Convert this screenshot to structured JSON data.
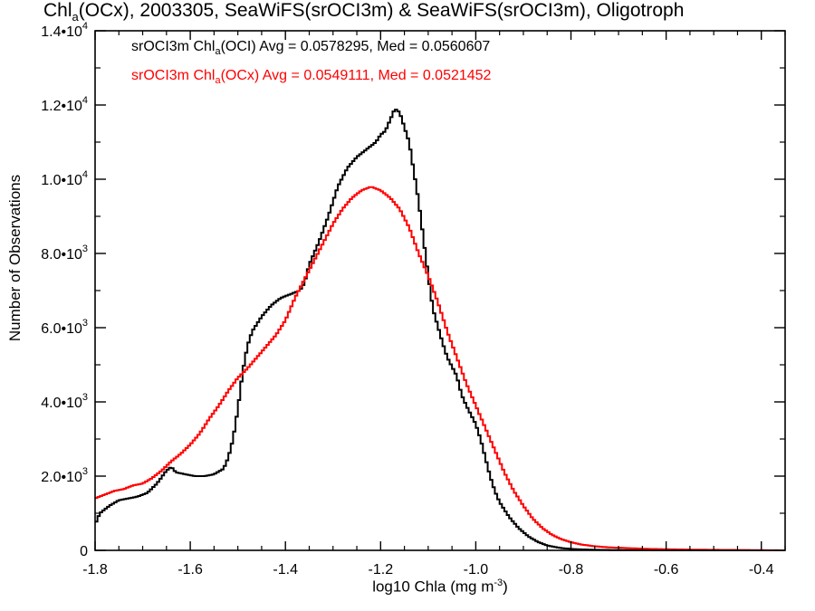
{
  "title": {
    "prefix": "Chl",
    "subscript": "a",
    "suffix": "(OCx), 2003305, SeaWiFS(srOCI3m) & SeaWiFS(srOCI3m), Oligotroph"
  },
  "legend": [
    {
      "prefix": "srOCI3m Chl",
      "subscript": "a",
      "suffix": "(OCI) Avg = 0.0578295, Med = 0.0560607",
      "color": "#000000"
    },
    {
      "prefix": "srOCI3m Chl",
      "subscript": "a",
      "suffix": "(OCx) Avg = 0.0549111, Med = 0.0521452",
      "color": "#ff0000"
    }
  ],
  "axes": {
    "xlabel_prefix": "log10 Chla (mg m",
    "xlabel_sup": "-3",
    "xlabel_suffix": ")",
    "ylabel": "Number of Observations",
    "xticks": [
      {
        "value": -1.8,
        "label": "-1.8"
      },
      {
        "value": -1.6,
        "label": "-1.6"
      },
      {
        "value": -1.4,
        "label": "-1.4"
      },
      {
        "value": -1.2,
        "label": "-1.2"
      },
      {
        "value": -1.0,
        "label": "-1.0"
      },
      {
        "value": -0.8,
        "label": "-0.8"
      },
      {
        "value": -0.6,
        "label": "-0.6"
      },
      {
        "value": -0.4,
        "label": "-0.4"
      }
    ],
    "yticks": [
      {
        "value": 0,
        "mantissa": "0",
        "exp": ""
      },
      {
        "value": 2000,
        "mantissa": "2.0•10",
        "exp": "3"
      },
      {
        "value": 4000,
        "mantissa": "4.0•10",
        "exp": "3"
      },
      {
        "value": 6000,
        "mantissa": "6.0•10",
        "exp": "3"
      },
      {
        "value": 8000,
        "mantissa": "8.0•10",
        "exp": "3"
      },
      {
        "value": 10000,
        "mantissa": "1.0•10",
        "exp": "4"
      },
      {
        "value": 12000,
        "mantissa": "1.2•10",
        "exp": "4"
      },
      {
        "value": 14000,
        "mantissa": "1.4•10",
        "exp": "4"
      }
    ]
  },
  "chart_data": {
    "type": "line",
    "step": true,
    "xlim": [
      -1.8,
      -0.35
    ],
    "ylim": [
      0,
      14000
    ],
    "grid": false,
    "legend_position": "top-left",
    "series": [
      {
        "name": "srOCI3m Chla(OCI) Avg = 0.0578295, Med = 0.0560607",
        "color": "#000000",
        "points": [
          [
            -1.8,
            700
          ],
          [
            -1.79,
            1000
          ],
          [
            -1.77,
            1200
          ],
          [
            -1.75,
            1350
          ],
          [
            -1.73,
            1400
          ],
          [
            -1.71,
            1450
          ],
          [
            -1.69,
            1550
          ],
          [
            -1.67,
            1800
          ],
          [
            -1.65,
            2150
          ],
          [
            -1.64,
            2250
          ],
          [
            -1.63,
            2100
          ],
          [
            -1.61,
            2050
          ],
          [
            -1.59,
            2000
          ],
          [
            -1.57,
            2000
          ],
          [
            -1.55,
            2050
          ],
          [
            -1.53,
            2200
          ],
          [
            -1.52,
            2500
          ],
          [
            -1.51,
            3000
          ],
          [
            -1.5,
            3800
          ],
          [
            -1.49,
            4800
          ],
          [
            -1.48,
            5500
          ],
          [
            -1.47,
            5900
          ],
          [
            -1.45,
            6300
          ],
          [
            -1.43,
            6600
          ],
          [
            -1.41,
            6800
          ],
          [
            -1.39,
            6900
          ],
          [
            -1.37,
            7000
          ],
          [
            -1.36,
            7200
          ],
          [
            -1.35,
            7700
          ],
          [
            -1.33,
            8300
          ],
          [
            -1.31,
            9000
          ],
          [
            -1.29,
            9800
          ],
          [
            -1.27,
            10300
          ],
          [
            -1.25,
            10600
          ],
          [
            -1.23,
            10800
          ],
          [
            -1.21,
            11000
          ],
          [
            -1.2,
            11200
          ],
          [
            -1.19,
            11300
          ],
          [
            -1.18,
            11600
          ],
          [
            -1.17,
            11900
          ],
          [
            -1.16,
            11800
          ],
          [
            -1.15,
            11400
          ],
          [
            -1.14,
            11000
          ],
          [
            -1.13,
            10200
          ],
          [
            -1.12,
            9400
          ],
          [
            -1.11,
            8400
          ],
          [
            -1.1,
            7400
          ],
          [
            -1.09,
            6500
          ],
          [
            -1.07,
            5600
          ],
          [
            -1.06,
            5200
          ],
          [
            -1.04,
            4700
          ],
          [
            -1.03,
            4200
          ],
          [
            -1.02,
            3900
          ],
          [
            -1.0,
            3400
          ],
          [
            -0.99,
            3000
          ],
          [
            -0.98,
            2500
          ],
          [
            -0.97,
            2000
          ],
          [
            -0.96,
            1600
          ],
          [
            -0.95,
            1300
          ],
          [
            -0.93,
            900
          ],
          [
            -0.91,
            600
          ],
          [
            -0.89,
            380
          ],
          [
            -0.87,
            230
          ],
          [
            -0.85,
            130
          ],
          [
            -0.82,
            60
          ],
          [
            -0.79,
            30
          ],
          [
            -0.75,
            15
          ],
          [
            -0.7,
            8
          ],
          [
            -0.6,
            3
          ],
          [
            -0.5,
            1
          ],
          [
            -0.35,
            0
          ]
        ]
      },
      {
        "name": "srOCI3m Chla(OCx) Avg = 0.0549111, Med = 0.0521452",
        "color": "#ff0000",
        "points": [
          [
            -1.8,
            1400
          ],
          [
            -1.78,
            1500
          ],
          [
            -1.76,
            1600
          ],
          [
            -1.74,
            1650
          ],
          [
            -1.72,
            1750
          ],
          [
            -1.7,
            1800
          ],
          [
            -1.68,
            1950
          ],
          [
            -1.66,
            2150
          ],
          [
            -1.64,
            2400
          ],
          [
            -1.62,
            2600
          ],
          [
            -1.6,
            2850
          ],
          [
            -1.58,
            3150
          ],
          [
            -1.56,
            3550
          ],
          [
            -1.54,
            3900
          ],
          [
            -1.52,
            4300
          ],
          [
            -1.5,
            4650
          ],
          [
            -1.48,
            4900
          ],
          [
            -1.46,
            5200
          ],
          [
            -1.44,
            5500
          ],
          [
            -1.42,
            5800
          ],
          [
            -1.4,
            6200
          ],
          [
            -1.38,
            6800
          ],
          [
            -1.36,
            7300
          ],
          [
            -1.34,
            7800
          ],
          [
            -1.32,
            8300
          ],
          [
            -1.3,
            8800
          ],
          [
            -1.28,
            9200
          ],
          [
            -1.26,
            9500
          ],
          [
            -1.24,
            9700
          ],
          [
            -1.22,
            9800
          ],
          [
            -1.2,
            9700
          ],
          [
            -1.18,
            9500
          ],
          [
            -1.16,
            9200
          ],
          [
            -1.14,
            8700
          ],
          [
            -1.12,
            8000
          ],
          [
            -1.1,
            7400
          ],
          [
            -1.08,
            6700
          ],
          [
            -1.06,
            5900
          ],
          [
            -1.04,
            5200
          ],
          [
            -1.02,
            4500
          ],
          [
            -1.0,
            3900
          ],
          [
            -0.98,
            3300
          ],
          [
            -0.96,
            2700
          ],
          [
            -0.94,
            2100
          ],
          [
            -0.92,
            1600
          ],
          [
            -0.9,
            1200
          ],
          [
            -0.88,
            850
          ],
          [
            -0.86,
            600
          ],
          [
            -0.84,
            420
          ],
          [
            -0.82,
            300
          ],
          [
            -0.8,
            220
          ],
          [
            -0.78,
            160
          ],
          [
            -0.75,
            110
          ],
          [
            -0.72,
            80
          ],
          [
            -0.68,
            60
          ],
          [
            -0.64,
            40
          ],
          [
            -0.6,
            30
          ],
          [
            -0.55,
            20
          ],
          [
            -0.5,
            15
          ],
          [
            -0.45,
            10
          ],
          [
            -0.4,
            5
          ],
          [
            -0.35,
            0
          ]
        ]
      }
    ]
  }
}
